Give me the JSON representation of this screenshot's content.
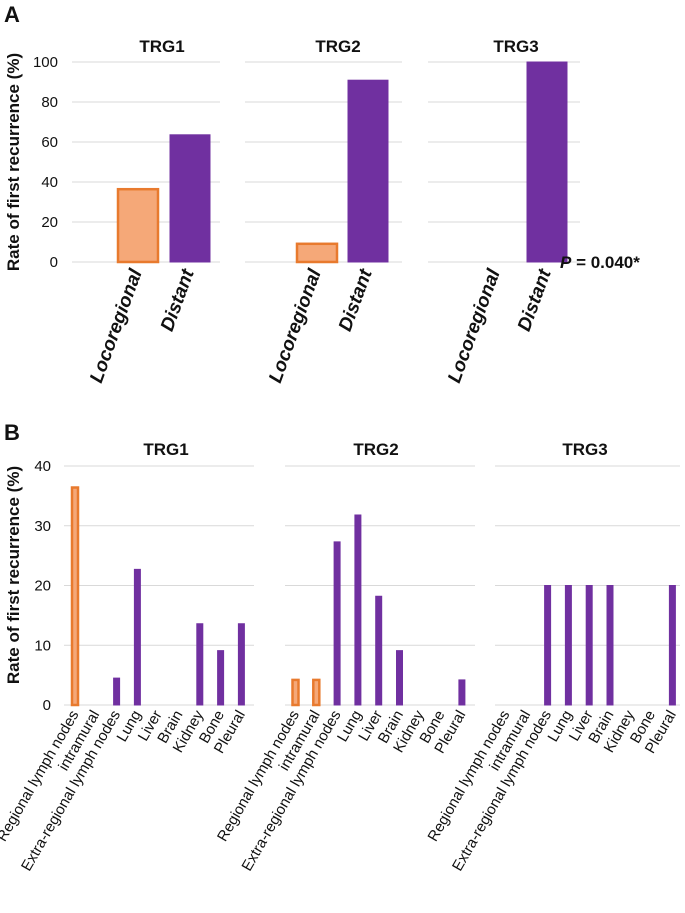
{
  "chart_data": [
    {
      "panel": "A",
      "type": "bar",
      "ylabel": "Rate of first recurrence (%)",
      "ylim": [
        0,
        100
      ],
      "yticks": [
        0,
        20,
        40,
        60,
        80,
        100
      ],
      "grid": true,
      "categories": [
        "Locoregional",
        "Distant"
      ],
      "groups": [
        {
          "title": "TRG1",
          "values": [
            36.4,
            63.6
          ]
        },
        {
          "title": "TRG2",
          "values": [
            9.1,
            90.9
          ]
        },
        {
          "title": "TRG3",
          "values": [
            0,
            100
          ]
        }
      ],
      "annotation": {
        "prefix": "P",
        "text": " = 0.040*"
      }
    },
    {
      "panel": "B",
      "type": "bar",
      "ylabel": "Rate of first recurrence (%)",
      "ylim": [
        0,
        40
      ],
      "yticks": [
        0,
        10,
        20,
        30,
        40
      ],
      "grid": true,
      "categories": [
        "Regional lymph nodes",
        "intramural",
        "Extra-regional lymph nodes",
        "Lung",
        "Liver",
        "Brain",
        "Kidney",
        "Bone",
        "Pleural"
      ],
      "locoregional_categories": [
        "Regional lymph nodes",
        "intramural"
      ],
      "groups": [
        {
          "title": "TRG1",
          "values": [
            36.4,
            0,
            4.5,
            22.7,
            0,
            0,
            13.6,
            9.1,
            13.6
          ]
        },
        {
          "title": "TRG2",
          "values": [
            4.2,
            4.2,
            27.3,
            31.8,
            18.2,
            9.1,
            0,
            0,
            4.2
          ]
        },
        {
          "title": "TRG3",
          "values": [
            0,
            0,
            20,
            20,
            20,
            20,
            0,
            0,
            20
          ]
        }
      ]
    }
  ],
  "colors": {
    "locoregional_fill": "#f5a878",
    "locoregional_edge": "#e87a2e",
    "distant": "#7030a0",
    "grid": "#d9d9d9"
  }
}
